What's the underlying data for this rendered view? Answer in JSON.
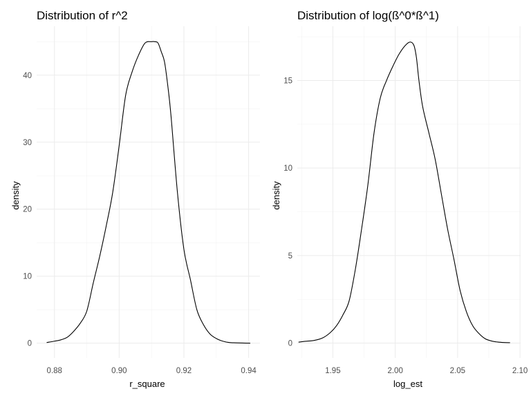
{
  "chart_data": [
    {
      "type": "line",
      "title": "Distribution of r^2",
      "xlabel": "r_square",
      "ylabel": "density",
      "xlim": [
        0.8745,
        0.9435
      ],
      "ylim": [
        -2.2,
        47.3
      ],
      "x_ticks": [
        0.88,
        0.9,
        0.92,
        0.94
      ],
      "x_tick_labels": [
        "0.88",
        "0.90",
        "0.92",
        "0.94"
      ],
      "y_ticks": [
        0,
        10,
        20,
        30,
        40
      ],
      "y_tick_labels": [
        "0",
        "10",
        "20",
        "30",
        "40"
      ],
      "grid": true,
      "series": [
        {
          "x": [
            0.8776,
            0.88,
            0.882,
            0.884,
            0.886,
            0.888,
            0.89,
            0.892,
            0.894,
            0.896,
            0.898,
            0.9,
            0.902,
            0.904,
            0.906,
            0.908,
            0.91,
            0.911,
            0.912,
            0.913,
            0.914,
            0.915,
            0.916,
            0.918,
            0.92,
            0.922,
            0.924,
            0.926,
            0.928,
            0.93,
            0.932,
            0.934,
            0.936,
            0.938,
            0.9405
          ],
          "y": [
            0.1,
            0.3,
            0.5,
            0.9,
            1.8,
            3.0,
            4.8,
            9.0,
            13.0,
            17.5,
            22.5,
            29.5,
            37.0,
            40.5,
            43.0,
            44.8,
            45.0,
            45.0,
            44.8,
            43.5,
            42.0,
            38.5,
            34.0,
            22.5,
            14.0,
            9.5,
            5.0,
            2.8,
            1.4,
            0.7,
            0.3,
            0.1,
            0.05,
            0.02,
            0.0
          ]
        }
      ]
    },
    {
      "type": "line",
      "title": "Distribution of log(ß^0*ß^1)",
      "xlabel": "log_est",
      "ylabel": "density",
      "xlim": [
        1.9215,
        2.1005
      ],
      "ylim": [
        -0.85,
        18.1
      ],
      "x_ticks": [
        1.95,
        2.0,
        2.05,
        2.1
      ],
      "x_tick_labels": [
        "1.95",
        "2.00",
        "2.05",
        "2.10"
      ],
      "y_ticks": [
        0,
        5,
        10,
        15
      ],
      "y_tick_labels": [
        "0",
        "5",
        "10",
        "15"
      ],
      "grid": true,
      "series": [
        {
          "x": [
            1.9225,
            1.928,
            1.935,
            1.942,
            1.948,
            1.953,
            1.958,
            1.963,
            1.968,
            1.973,
            1.978,
            1.983,
            1.988,
            1.993,
            1.998,
            2.003,
            2.008,
            2.012,
            2.015,
            2.017,
            2.019,
            2.022,
            2.027,
            2.032,
            2.037,
            2.042,
            2.047,
            2.052,
            2.057,
            2.062,
            2.067,
            2.072,
            2.077,
            2.082,
            2.087,
            2.092
          ],
          "y": [
            0.05,
            0.1,
            0.15,
            0.3,
            0.6,
            1.0,
            1.6,
            2.4,
            4.2,
            6.5,
            9.0,
            12.0,
            14.0,
            15.0,
            15.8,
            16.5,
            17.0,
            17.2,
            17.0,
            16.3,
            15.0,
            13.5,
            12.0,
            10.5,
            8.5,
            6.5,
            4.8,
            3.0,
            1.8,
            1.0,
            0.55,
            0.25,
            0.12,
            0.06,
            0.03,
            0.02
          ]
        }
      ]
    }
  ]
}
